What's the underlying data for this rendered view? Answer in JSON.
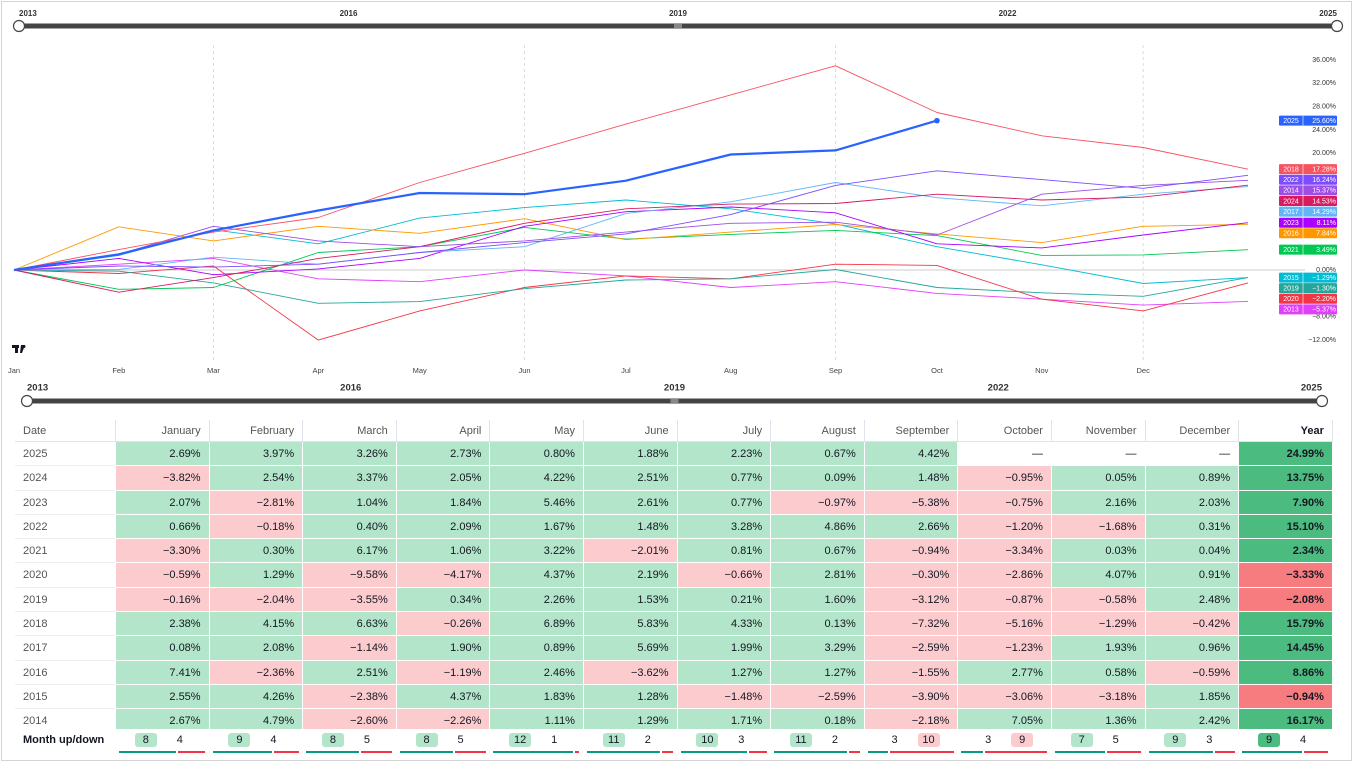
{
  "range_slider": {
    "labels": [
      "2013",
      "2016",
      "2019",
      "2022",
      "2025"
    ]
  },
  "chart_data": {
    "type": "line",
    "x": [
      0,
      31,
      59,
      90,
      120,
      151,
      181,
      212,
      243,
      273,
      304,
      334,
      365
    ],
    "xlim": [
      0,
      365
    ],
    "xticks": [
      {
        "value": 0,
        "label": "Jan"
      },
      {
        "value": 31,
        "label": "Feb"
      },
      {
        "value": 59,
        "label": "Mar"
      },
      {
        "value": 90,
        "label": "Apr"
      },
      {
        "value": 120,
        "label": "May"
      },
      {
        "value": 151,
        "label": "Jun"
      },
      {
        "value": 181,
        "label": "Jul"
      },
      {
        "value": 212,
        "label": "Aug"
      },
      {
        "value": 243,
        "label": "Sep"
      },
      {
        "value": 273,
        "label": "Oct"
      },
      {
        "value": 304,
        "label": "Nov"
      },
      {
        "value": 334,
        "label": "Dec"
      }
    ],
    "ylim": [
      -13.7,
      38.9
    ],
    "yticks": [
      {
        "value": 36,
        "label": "36.00%"
      },
      {
        "value": 32,
        "label": "32.00%"
      },
      {
        "value": 28,
        "label": "28.00%"
      },
      {
        "value": 24,
        "label": "24.00%"
      },
      {
        "value": 20,
        "label": "20.00%"
      },
      {
        "value": 0,
        "label": "0.00%"
      },
      {
        "value": -8,
        "label": "−8.00%"
      },
      {
        "value": -12,
        "label": "−12.00%"
      }
    ],
    "grid": true,
    "series": [
      {
        "name": "2025",
        "color": "#2962ff",
        "values": [
          0,
          2.7,
          6.8,
          10.2,
          13.2,
          13.0,
          15.3,
          19.8,
          20.5,
          25.6,
          null,
          null,
          null
        ],
        "value_labels": [
          null,
          null,
          null,
          null,
          null,
          null,
          null,
          null,
          null,
          "25.60%",
          null,
          null,
          null
        ]
      },
      {
        "name": "2018",
        "color": "#f7525f",
        "values": [
          0,
          3.5,
          6.5,
          9,
          15,
          20,
          25,
          30,
          35,
          27,
          23,
          21,
          17.28
        ],
        "value_labels": [
          null,
          null,
          null,
          null,
          null,
          null,
          null,
          null,
          null,
          null,
          null,
          null,
          "17.28%"
        ]
      },
      {
        "name": "2022",
        "color": "#7c4dff",
        "values": [
          0,
          0.7,
          0.5,
          1,
          3,
          4.7,
          6.2,
          9.5,
          14.5,
          17,
          15.5,
          14,
          16.24
        ],
        "value_labels": [
          null,
          null,
          null,
          null,
          null,
          null,
          null,
          null,
          null,
          null,
          null,
          null,
          "16.24%"
        ]
      },
      {
        "name": "2014",
        "color": "#9c4ee6",
        "values": [
          0,
          2.7,
          7.5,
          5,
          4,
          5,
          6.5,
          8,
          8.2,
          6,
          13,
          14.5,
          15.37
        ],
        "value_labels": [
          null,
          null,
          null,
          null,
          null,
          null,
          null,
          null,
          null,
          null,
          null,
          null,
          "15.37%"
        ]
      },
      {
        "name": "2024",
        "color": "#d81b60",
        "values": [
          0,
          -3.8,
          -1.3,
          2,
          4,
          8,
          10.5,
          11.3,
          11.4,
          13,
          12,
          12.5,
          14.53
        ],
        "value_labels": [
          null,
          null,
          null,
          null,
          null,
          null,
          null,
          null,
          null,
          null,
          null,
          null,
          "14.53%"
        ]
      },
      {
        "name": "2017",
        "color": "#64b5f6",
        "values": [
          0,
          0.1,
          2.2,
          1,
          3,
          4,
          9.7,
          11.7,
          15,
          12.4,
          11,
          13,
          14.29
        ],
        "value_labels": [
          null,
          null,
          null,
          null,
          null,
          null,
          null,
          null,
          null,
          null,
          null,
          null,
          "14.29%"
        ]
      },
      {
        "name": "2023",
        "color": "#aa00ff",
        "values": [
          0,
          2,
          -0.8,
          0.2,
          2,
          7.5,
          10,
          10.8,
          9.8,
          4.5,
          3.8,
          6,
          8.11
        ],
        "value_labels": [
          null,
          null,
          null,
          null,
          null,
          null,
          null,
          null,
          null,
          null,
          null,
          null,
          "8.11%"
        ]
      },
      {
        "name": "2016",
        "color": "#ff9800",
        "values": [
          0,
          7.4,
          5,
          7.5,
          6.3,
          8.8,
          5.2,
          6.5,
          7.8,
          6.2,
          4.7,
          7.5,
          7.84
        ],
        "value_labels": [
          null,
          null,
          null,
          null,
          null,
          null,
          null,
          null,
          null,
          null,
          null,
          null,
          "7.84%"
        ]
      },
      {
        "name": "2021",
        "color": "#00c853",
        "values": [
          0,
          -3.3,
          -3,
          3,
          4,
          7.3,
          5.3,
          6.1,
          6.8,
          5.9,
          2.5,
          2.6,
          3.49
        ],
        "value_labels": [
          null,
          null,
          null,
          null,
          null,
          null,
          null,
          null,
          null,
          null,
          null,
          null,
          "3.49%"
        ]
      },
      {
        "name": "2015",
        "color": "#00bcd4",
        "values": [
          0,
          2.5,
          6.9,
          4.5,
          8.9,
          10.7,
          12,
          10.5,
          7.9,
          4,
          0.9,
          -2.3,
          -1.29
        ],
        "value_labels": [
          null,
          null,
          null,
          null,
          null,
          null,
          null,
          null,
          null,
          null,
          null,
          null,
          "−1.29%"
        ]
      },
      {
        "name": "2019",
        "color": "#26a69a",
        "values": [
          0,
          -0.2,
          -2.2,
          -5.7,
          -5.4,
          -3.2,
          -1.7,
          -1.5,
          0.1,
          -3,
          -3.9,
          -4.5,
          -1.3
        ],
        "value_labels": [
          null,
          null,
          null,
          null,
          null,
          null,
          null,
          null,
          null,
          null,
          null,
          null,
          "−1.30%"
        ]
      },
      {
        "name": "2020",
        "color": "#f23645",
        "values": [
          0,
          -0.6,
          0.7,
          -12,
          -7,
          -3,
          -1,
          -1.5,
          1,
          0.8,
          -5,
          -7,
          -2.2
        ],
        "value_labels": [
          null,
          null,
          null,
          null,
          null,
          null,
          null,
          null,
          null,
          null,
          null,
          null,
          "−2.20%"
        ]
      },
      {
        "name": "2013",
        "color": "#e040fb",
        "values": [
          0,
          1,
          2,
          -1.5,
          -2,
          0,
          -1,
          -3,
          -2,
          -4,
          -5,
          -6,
          -5.37
        ],
        "value_labels": [
          null,
          null,
          null,
          null,
          null,
          null,
          null,
          null,
          null,
          null,
          null,
          null,
          "−5.37%"
        ]
      }
    ]
  },
  "table": {
    "headers": [
      "Date",
      "January",
      "February",
      "March",
      "April",
      "May",
      "June",
      "July",
      "August",
      "September",
      "October",
      "November",
      "December",
      "Year"
    ],
    "rows": [
      [
        "2025",
        "2.69%",
        "3.97%",
        "3.26%",
        "2.73%",
        "0.80%",
        "1.88%",
        "2.23%",
        "0.67%",
        "4.42%",
        "—",
        "—",
        "—",
        "24.99%"
      ],
      [
        "2024",
        "−3.82%",
        "2.54%",
        "3.37%",
        "2.05%",
        "4.22%",
        "2.51%",
        "0.77%",
        "0.09%",
        "1.48%",
        "−0.95%",
        "0.05%",
        "0.89%",
        "13.75%"
      ],
      [
        "2023",
        "2.07%",
        "−2.81%",
        "1.04%",
        "1.84%",
        "5.46%",
        "2.61%",
        "0.77%",
        "−0.97%",
        "−5.38%",
        "−0.75%",
        "2.16%",
        "2.03%",
        "7.90%"
      ],
      [
        "2022",
        "0.66%",
        "−0.18%",
        "0.40%",
        "2.09%",
        "1.67%",
        "1.48%",
        "3.28%",
        "4.86%",
        "2.66%",
        "−1.20%",
        "−1.68%",
        "0.31%",
        "15.10%"
      ],
      [
        "2021",
        "−3.30%",
        "0.30%",
        "6.17%",
        "1.06%",
        "3.22%",
        "−2.01%",
        "0.81%",
        "0.67%",
        "−0.94%",
        "−3.34%",
        "0.03%",
        "0.04%",
        "2.34%"
      ],
      [
        "2020",
        "−0.59%",
        "1.29%",
        "−9.58%",
        "−4.17%",
        "4.37%",
        "2.19%",
        "−0.66%",
        "2.81%",
        "−0.30%",
        "−2.86%",
        "4.07%",
        "0.91%",
        "−3.33%"
      ],
      [
        "2019",
        "−0.16%",
        "−2.04%",
        "−3.55%",
        "0.34%",
        "2.26%",
        "1.53%",
        "0.21%",
        "1.60%",
        "−3.12%",
        "−0.87%",
        "−0.58%",
        "2.48%",
        "−2.08%"
      ],
      [
        "2018",
        "2.38%",
        "4.15%",
        "6.63%",
        "−0.26%",
        "6.89%",
        "5.83%",
        "4.33%",
        "0.13%",
        "−7.32%",
        "−5.16%",
        "−1.29%",
        "−0.42%",
        "15.79%"
      ],
      [
        "2017",
        "0.08%",
        "2.08%",
        "−1.14%",
        "1.90%",
        "0.89%",
        "5.69%",
        "1.99%",
        "3.29%",
        "−2.59%",
        "−1.23%",
        "1.93%",
        "0.96%",
        "14.45%"
      ],
      [
        "2016",
        "7.41%",
        "−2.36%",
        "2.51%",
        "−1.19%",
        "2.46%",
        "−3.62%",
        "1.27%",
        "1.27%",
        "−1.55%",
        "2.77%",
        "0.58%",
        "−0.59%",
        "8.86%"
      ],
      [
        "2015",
        "2.55%",
        "4.26%",
        "−2.38%",
        "4.37%",
        "1.83%",
        "1.28%",
        "−1.48%",
        "−2.59%",
        "−3.90%",
        "−3.06%",
        "−3.18%",
        "1.85%",
        "−0.94%"
      ],
      [
        "2014",
        "2.67%",
        "4.79%",
        "−2.60%",
        "−2.26%",
        "1.11%",
        "1.29%",
        "1.71%",
        "0.18%",
        "−2.18%",
        "7.05%",
        "1.36%",
        "2.42%",
        "16.17%"
      ]
    ],
    "footer": {
      "label": "Month up/down",
      "counts": [
        [
          8,
          4
        ],
        [
          9,
          4
        ],
        [
          8,
          5
        ],
        [
          8,
          5
        ],
        [
          12,
          1
        ],
        [
          11,
          2
        ],
        [
          10,
          3
        ],
        [
          11,
          2
        ],
        [
          3,
          10
        ],
        [
          3,
          9
        ],
        [
          7,
          5
        ],
        [
          9,
          3
        ],
        [
          9,
          4
        ]
      ]
    }
  }
}
